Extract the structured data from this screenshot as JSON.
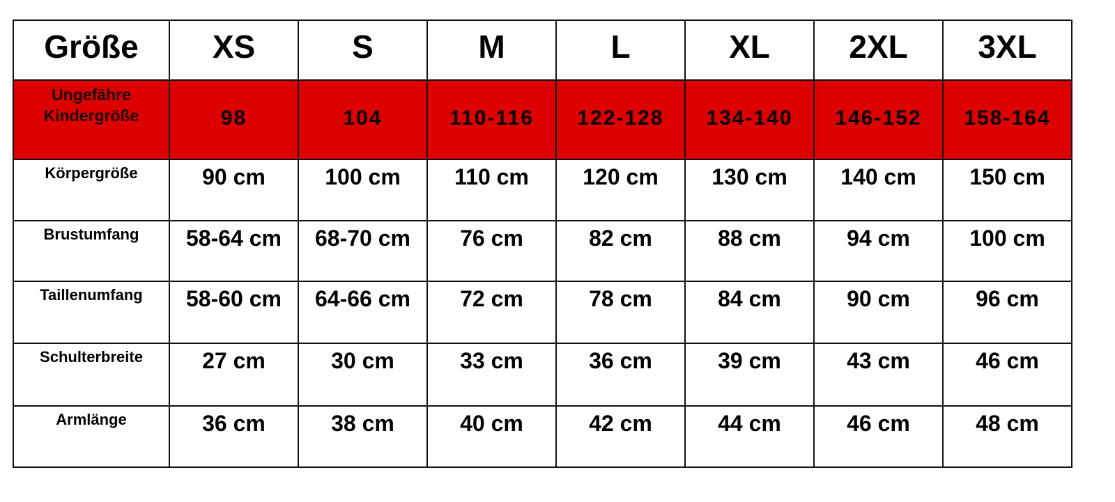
{
  "colors": {
    "highlight_row": "#dd0000",
    "border": "#111111"
  },
  "header": {
    "label": "Größe",
    "sizes": [
      "XS",
      "S",
      "M",
      "L",
      "XL",
      "2XL",
      "3XL"
    ]
  },
  "rows": [
    {
      "label": "Ungefähre Kindergröße",
      "values": [
        "98",
        "104",
        "110-116",
        "122-128",
        "134-140",
        "146-152",
        "158-164"
      ]
    },
    {
      "label": "Körpergröße",
      "values": [
        "90 cm",
        "100 cm",
        "110 cm",
        "120 cm",
        "130 cm",
        "140 cm",
        "150 cm"
      ]
    },
    {
      "label": "Brustumfang",
      "values": [
        "58-64 cm",
        "68-70 cm",
        "76 cm",
        "82 cm",
        "88 cm",
        "94 cm",
        "100 cm"
      ]
    },
    {
      "label": "Taillenumfang",
      "values": [
        "58-60 cm",
        "64-66 cm",
        "72 cm",
        "78 cm",
        "84 cm",
        "90 cm",
        "96 cm"
      ]
    },
    {
      "label": "Schulterbreite",
      "values": [
        "27 cm",
        "30 cm",
        "33 cm",
        "36 cm",
        "39 cm",
        "43 cm",
        "46 cm"
      ]
    },
    {
      "label": "Armlänge",
      "values": [
        "36 cm",
        "38 cm",
        "40 cm",
        "42 cm",
        "44 cm",
        "46 cm",
        "48 cm"
      ]
    }
  ]
}
